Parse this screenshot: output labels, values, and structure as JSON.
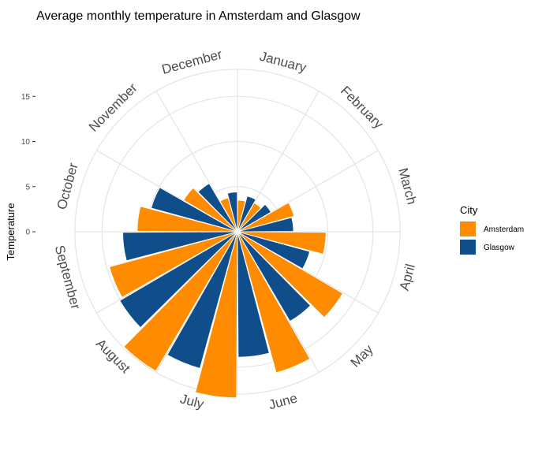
{
  "chart_data": {
    "type": "bar",
    "coordinate_system": "polar",
    "title": "Average monthly temperature in Amsterdam and Glasgow",
    "ylabel": "Temperature",
    "xlabel": "",
    "categories": [
      "January",
      "February",
      "March",
      "April",
      "May",
      "June",
      "July",
      "August",
      "September",
      "October",
      "November",
      "December"
    ],
    "series": [
      {
        "name": "Amsterdam",
        "color": "#FF8C00",
        "values": [
          3.5,
          3.7,
          6.5,
          9.8,
          13.5,
          16.2,
          18.4,
          17.9,
          14.7,
          11.1,
          6.9,
          3.9
        ]
      },
      {
        "name": "Glasgow",
        "color": "#104E8B",
        "values": [
          4.1,
          4.3,
          6.2,
          8.3,
          11.5,
          13.9,
          15.7,
          15.1,
          12.7,
          9.9,
          6.2,
          4.4
        ]
      }
    ],
    "yticks": [
      "0",
      "5",
      "10",
      "15"
    ],
    "ylim": [
      0,
      18
    ],
    "grid": true,
    "legend": {
      "title": "City",
      "position": "right"
    }
  }
}
